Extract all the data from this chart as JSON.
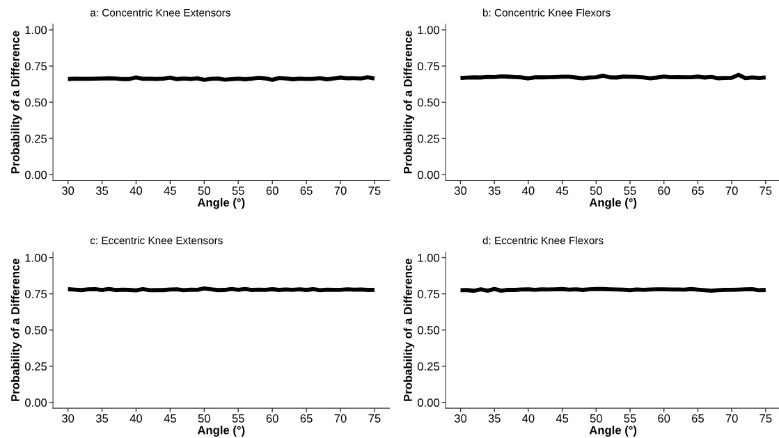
{
  "chart_data": [
    {
      "type": "line",
      "title": "a: Concentric Knee Extensors",
      "xlabel": "Angle (°)",
      "ylabel": "Probability of a Difference",
      "xlim": [
        27.8,
        77.2
      ],
      "ylim": [
        -0.04,
        1.04
      ],
      "xticks": [
        30,
        35,
        40,
        45,
        50,
        55,
        60,
        65,
        70,
        75
      ],
      "yticks": [
        {
          "value": 0,
          "label": "0.00"
        },
        {
          "value": 0.25,
          "label": "0.25"
        },
        {
          "value": 0.5,
          "label": "0.50"
        },
        {
          "value": 0.75,
          "label": "0.75"
        },
        {
          "value": 1,
          "label": "1.00"
        }
      ],
      "grid": false,
      "legend": false,
      "line_style": "solid",
      "x": [
        30,
        31,
        32,
        33,
        34,
        35,
        36,
        37,
        38,
        39,
        40,
        41,
        42,
        43,
        44,
        45,
        46,
        47,
        48,
        49,
        50,
        51,
        52,
        53,
        54,
        55,
        56,
        57,
        58,
        59,
        60,
        61,
        62,
        63,
        64,
        65,
        66,
        67,
        68,
        69,
        70,
        71,
        72,
        73,
        74,
        75
      ],
      "series": [
        {
          "color": "#000000",
          "values": [
            0.66,
            0.663,
            0.662,
            0.662,
            0.663,
            0.664,
            0.666,
            0.664,
            0.66,
            0.66,
            0.672,
            0.662,
            0.663,
            0.661,
            0.663,
            0.67,
            0.66,
            0.664,
            0.661,
            0.666,
            0.655,
            0.662,
            0.664,
            0.656,
            0.66,
            0.663,
            0.659,
            0.663,
            0.669,
            0.665,
            0.655,
            0.668,
            0.664,
            0.659,
            0.663,
            0.661,
            0.662,
            0.667,
            0.658,
            0.664,
            0.671,
            0.666,
            0.667,
            0.664,
            0.673,
            0.664
          ]
        }
      ]
    },
    {
      "type": "line",
      "title": "b: Concentric Knee Flexors",
      "xlabel": "Angle (°)",
      "ylabel": "Probability of a Difference",
      "xlim": [
        27.8,
        77.2
      ],
      "ylim": [
        -0.04,
        1.04
      ],
      "xticks": [
        30,
        35,
        40,
        45,
        50,
        55,
        60,
        65,
        70,
        75
      ],
      "yticks": [
        {
          "value": 0,
          "label": "0.00"
        },
        {
          "value": 0.25,
          "label": "0.25"
        },
        {
          "value": 0.5,
          "label": "0.50"
        },
        {
          "value": 0.75,
          "label": "0.75"
        },
        {
          "value": 1,
          "label": "1.00"
        }
      ],
      "grid": false,
      "legend": false,
      "line_style": "solid",
      "x": [
        30,
        31,
        32,
        33,
        34,
        35,
        36,
        37,
        38,
        39,
        40,
        41,
        42,
        43,
        44,
        45,
        46,
        47,
        48,
        49,
        50,
        51,
        52,
        53,
        54,
        55,
        56,
        57,
        58,
        59,
        60,
        61,
        62,
        63,
        64,
        65,
        66,
        67,
        68,
        69,
        70,
        71,
        72,
        73,
        74,
        75
      ],
      "series": [
        {
          "color": "#000000",
          "values": [
            0.668,
            0.67,
            0.672,
            0.671,
            0.675,
            0.674,
            0.679,
            0.677,
            0.674,
            0.672,
            0.665,
            0.673,
            0.672,
            0.673,
            0.674,
            0.676,
            0.676,
            0.671,
            0.666,
            0.671,
            0.673,
            0.684,
            0.672,
            0.671,
            0.677,
            0.676,
            0.675,
            0.672,
            0.666,
            0.671,
            0.678,
            0.673,
            0.674,
            0.673,
            0.673,
            0.677,
            0.671,
            0.675,
            0.666,
            0.668,
            0.669,
            0.69,
            0.667,
            0.672,
            0.668,
            0.672
          ]
        }
      ]
    },
    {
      "type": "line",
      "title": "c: Eccentric Knee Extensors",
      "xlabel": "Angle (°)",
      "ylabel": "Probability of a Difference",
      "xlim": [
        27.8,
        77.2
      ],
      "ylim": [
        -0.04,
        1.04
      ],
      "xticks": [
        30,
        35,
        40,
        45,
        50,
        55,
        60,
        65,
        70,
        75
      ],
      "yticks": [
        {
          "value": 0,
          "label": "0.00"
        },
        {
          "value": 0.25,
          "label": "0.25"
        },
        {
          "value": 0.5,
          "label": "0.50"
        },
        {
          "value": 0.75,
          "label": "0.75"
        },
        {
          "value": 1,
          "label": "1.00"
        }
      ],
      "grid": false,
      "legend": false,
      "line_style": "solid",
      "x": [
        30,
        31,
        32,
        33,
        34,
        35,
        36,
        37,
        38,
        39,
        40,
        41,
        42,
        43,
        44,
        45,
        46,
        47,
        48,
        49,
        50,
        51,
        52,
        53,
        54,
        55,
        56,
        57,
        58,
        59,
        60,
        61,
        62,
        63,
        64,
        65,
        66,
        67,
        68,
        69,
        70,
        71,
        72,
        73,
        74,
        75
      ],
      "series": [
        {
          "color": "#000000",
          "values": [
            0.782,
            0.779,
            0.776,
            0.781,
            0.782,
            0.776,
            0.784,
            0.776,
            0.779,
            0.777,
            0.774,
            0.783,
            0.775,
            0.776,
            0.776,
            0.78,
            0.781,
            0.775,
            0.779,
            0.778,
            0.787,
            0.781,
            0.776,
            0.777,
            0.784,
            0.778,
            0.784,
            0.777,
            0.779,
            0.778,
            0.782,
            0.777,
            0.78,
            0.778,
            0.781,
            0.777,
            0.782,
            0.775,
            0.779,
            0.778,
            0.778,
            0.781,
            0.779,
            0.78,
            0.777,
            0.778
          ]
        }
      ]
    },
    {
      "type": "line",
      "title": "d: Eccentric Knee Flexors",
      "xlabel": "Angle (°)",
      "ylabel": "Probability of a Difference",
      "xlim": [
        27.8,
        77.2
      ],
      "ylim": [
        -0.04,
        1.04
      ],
      "xticks": [
        30,
        35,
        40,
        45,
        50,
        55,
        60,
        65,
        70,
        75
      ],
      "yticks": [
        {
          "value": 0,
          "label": "0.00"
        },
        {
          "value": 0.25,
          "label": "0.25"
        },
        {
          "value": 0.5,
          "label": "0.50"
        },
        {
          "value": 0.75,
          "label": "0.75"
        },
        {
          "value": 1,
          "label": "1.00"
        }
      ],
      "grid": false,
      "legend": false,
      "line_style": "solid",
      "x": [
        30,
        31,
        32,
        33,
        34,
        35,
        36,
        37,
        38,
        39,
        40,
        41,
        42,
        43,
        44,
        45,
        46,
        47,
        48,
        49,
        50,
        51,
        52,
        53,
        54,
        55,
        56,
        57,
        58,
        59,
        60,
        61,
        62,
        63,
        64,
        65,
        66,
        67,
        68,
        69,
        70,
        71,
        72,
        73,
        74,
        75
      ],
      "series": [
        {
          "color": "#000000",
          "values": [
            0.775,
            0.776,
            0.771,
            0.781,
            0.772,
            0.784,
            0.772,
            0.778,
            0.777,
            0.78,
            0.781,
            0.778,
            0.781,
            0.78,
            0.781,
            0.783,
            0.779,
            0.781,
            0.777,
            0.781,
            0.784,
            0.783,
            0.781,
            0.78,
            0.779,
            0.776,
            0.78,
            0.778,
            0.78,
            0.781,
            0.781,
            0.78,
            0.78,
            0.779,
            0.783,
            0.779,
            0.775,
            0.772,
            0.775,
            0.778,
            0.778,
            0.779,
            0.781,
            0.782,
            0.775,
            0.777
          ]
        }
      ]
    }
  ]
}
